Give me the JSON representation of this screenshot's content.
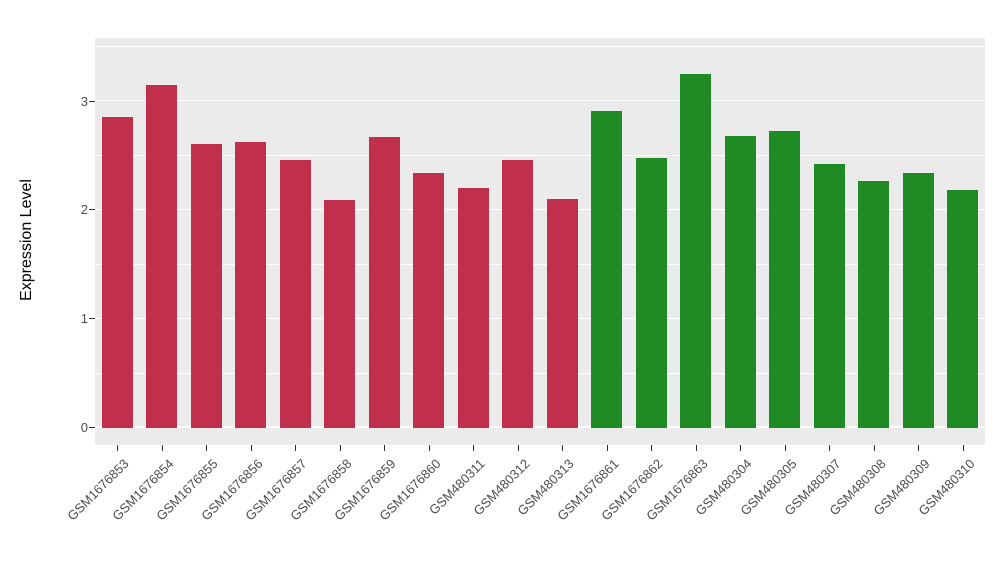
{
  "chart_data": {
    "type": "bar",
    "title": "",
    "xlabel": "",
    "ylabel": "Expression Level",
    "ylim": [
      -0.16,
      3.58
    ],
    "yticks": [
      0,
      1,
      2,
      3
    ],
    "yticks_minor": [
      0.5,
      1.5,
      2.5,
      3.5
    ],
    "grid": "on",
    "legend": "none",
    "panel_background": "#EBEBEB",
    "grid_color": "#ffffff",
    "categories": [
      "GSM1676853",
      "GSM1676854",
      "GSM1676855",
      "GSM1676856",
      "GSM1676857",
      "GSM1676858",
      "GSM1676859",
      "GSM1676860",
      "GSM480311",
      "GSM480312",
      "GSM480313",
      "GSM1676861",
      "GSM1676862",
      "GSM1676863",
      "GSM480304",
      "GSM480305",
      "GSM480307",
      "GSM480308",
      "GSM480309",
      "GSM480310"
    ],
    "values": [
      2.85,
      3.15,
      2.61,
      2.62,
      2.46,
      2.09,
      2.67,
      2.34,
      2.2,
      2.46,
      2.1,
      2.91,
      2.48,
      3.25,
      2.68,
      2.73,
      2.42,
      2.27,
      2.34,
      2.18
    ],
    "groups": [
      "red",
      "red",
      "red",
      "red",
      "red",
      "red",
      "red",
      "red",
      "red",
      "red",
      "red",
      "green",
      "green",
      "green",
      "green",
      "green",
      "green",
      "green",
      "green",
      "green"
    ],
    "group_colors": {
      "red": "#C0304C",
      "green": "#208B24"
    }
  }
}
